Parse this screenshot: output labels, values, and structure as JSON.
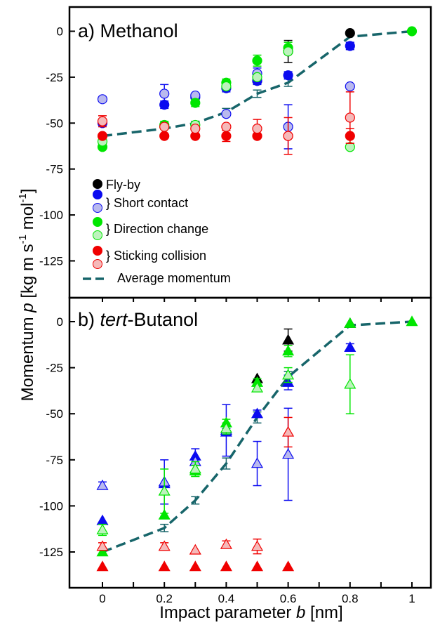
{
  "figure": {
    "ylabel_main": "Momentum ",
    "ylabel_var": "p",
    "ylabel_units": " [kg m s",
    "ylabel_exp1": "-1",
    "ylabel_mid": " mol",
    "ylabel_exp2": "-1",
    "ylabel_close": "]",
    "xlabel_main": "Impact parameter ",
    "xlabel_var": "b",
    "xlabel_units": " [nm]",
    "x_ticks": [
      "0",
      "0.2",
      "0.4",
      "0.6",
      "0.8",
      "1"
    ],
    "top_y_ticks": [
      "0",
      "-25",
      "-50",
      "-75",
      "-100",
      "-125"
    ],
    "bottom_y_ticks": [
      "0",
      "-25",
      "-50",
      "-75",
      "-100",
      "-125"
    ]
  },
  "legend": [
    {
      "label": "Fly-by",
      "marker": "filled-circle",
      "color": "#000000"
    },
    {
      "label": "} Short contact",
      "marker": "filled+open-circle",
      "color": "#0b0bf0"
    },
    {
      "label": "} Direction change",
      "marker": "filled+open-circle",
      "color": "#00e600"
    },
    {
      "label": "} Sticking collision",
      "marker": "filled+open-circle",
      "color": "#f00000"
    },
    {
      "label": "Average momentum",
      "marker": "dashed-line",
      "color": "#17656a"
    }
  ],
  "colors": {
    "flyby": "#000000",
    "short": "#0b0bf0",
    "short_open_fill": "#b9b9ee",
    "direction": "#00e600",
    "direction_open_fill": "#bdf2bd",
    "sticking": "#f00000",
    "sticking_open_fill": "#f5b9b9",
    "average": "#17656a"
  },
  "chart_data": [
    {
      "type": "scatter",
      "title": "a) Methanol",
      "xlabel": "Impact parameter b [nm]",
      "ylabel": "Momentum p [kg m s-1 mol-1]",
      "xlim": [
        -0.1,
        1.05
      ],
      "ylim": [
        -135,
        6
      ],
      "marker": "circle",
      "series": [
        {
          "name": "Fly-by",
          "style": "filled",
          "color": "#000000",
          "points": [
            [
              0.5,
              -27,
              0
            ],
            [
              0.6,
              -11,
              6
            ],
            [
              0.8,
              -1,
              0
            ]
          ]
        },
        {
          "name": "Short contact",
          "style": "filled",
          "color": "#0b0bf0",
          "points": [
            [
              0,
              -50,
              0
            ],
            [
              0.2,
              -40,
              2
            ],
            [
              0.3,
              -36,
              0
            ],
            [
              0.4,
              -31,
              2
            ],
            [
              0.5,
              -27,
              2
            ],
            [
              0.6,
              -24,
              2
            ],
            [
              0.8,
              -8,
              2
            ]
          ]
        },
        {
          "name": "Short contact",
          "style": "open",
          "color": "#0b0bf0",
          "points": [
            [
              0,
              -37,
              0
            ],
            [
              0.2,
              -34,
              5
            ],
            [
              0.3,
              -35,
              0
            ],
            [
              0.4,
              -45,
              0
            ],
            [
              0.5,
              -23,
              3
            ],
            [
              0.6,
              -52,
              12
            ],
            [
              0.8,
              -30,
              0
            ]
          ]
        },
        {
          "name": "Direction change",
          "style": "filled",
          "color": "#00e600",
          "points": [
            [
              0,
              -63,
              0
            ],
            [
              0.2,
              -51,
              2
            ],
            [
              0.3,
              -39,
              2
            ],
            [
              0.4,
              -28,
              2
            ],
            [
              0.5,
              -16,
              3
            ],
            [
              0.6,
              -9,
              3
            ],
            [
              1.0,
              0,
              0
            ]
          ]
        },
        {
          "name": "Direction change",
          "style": "open",
          "color": "#00e600",
          "points": [
            [
              0,
              -60,
              0
            ],
            [
              0.2,
              -52,
              0
            ],
            [
              0.3,
              -51,
              0
            ],
            [
              0.4,
              -30,
              0
            ],
            [
              0.5,
              -25,
              0
            ],
            [
              0.6,
              -11,
              0
            ],
            [
              0.8,
              -63,
              0
            ]
          ]
        },
        {
          "name": "Sticking collision",
          "style": "filled",
          "color": "#f00000",
          "points": [
            [
              0,
              -57,
              0
            ],
            [
              0.2,
              -57,
              0
            ],
            [
              0.3,
              -57,
              0
            ],
            [
              0.4,
              -57,
              3
            ],
            [
              0.5,
              -57,
              0
            ],
            [
              0.6,
              -57,
              0
            ],
            [
              0.8,
              -57,
              4
            ]
          ]
        },
        {
          "name": "Sticking collision",
          "style": "open",
          "color": "#f00000",
          "points": [
            [
              0,
              -49,
              3
            ],
            [
              0.2,
              -52,
              0
            ],
            [
              0.3,
              -53,
              0
            ],
            [
              0.4,
              -52,
              0
            ],
            [
              0.5,
              -53,
              5
            ],
            [
              0.6,
              -57,
              10
            ],
            [
              0.8,
              -47,
              14
            ]
          ]
        }
      ],
      "average": {
        "name": "Average momentum",
        "color": "#17656a",
        "points": [
          [
            0,
            -57,
            0
          ],
          [
            0.2,
            -53,
            0
          ],
          [
            0.3,
            -50,
            1
          ],
          [
            0.4,
            -44,
            2
          ],
          [
            0.5,
            -34,
            2
          ],
          [
            0.6,
            -28,
            2
          ],
          [
            0.8,
            -3,
            0
          ],
          [
            1.0,
            0,
            0
          ]
        ]
      }
    },
    {
      "type": "scatter",
      "title": "b) tert-Butanol",
      "xlabel": "Impact parameter b [nm]",
      "ylabel": "Momentum p [kg m s-1 mol-1]",
      "xlim": [
        -0.1,
        1.05
      ],
      "ylim": [
        -140,
        6
      ],
      "marker": "triangle",
      "series": [
        {
          "name": "Fly-by",
          "style": "filled",
          "color": "#000000",
          "points": [
            [
              0.5,
              -31,
              0
            ],
            [
              0.6,
              -10,
              6
            ],
            [
              0.8,
              -1,
              0
            ]
          ]
        },
        {
          "name": "Short contact",
          "style": "filled",
          "color": "#0b0bf0",
          "points": [
            [
              0,
              -108,
              0
            ],
            [
              0.2,
              -88,
              0
            ],
            [
              0.3,
              -73,
              4
            ],
            [
              0.4,
              -60,
              2
            ],
            [
              0.5,
              -50,
              2
            ],
            [
              0.6,
              -33,
              4
            ],
            [
              0.8,
              -14,
              2
            ]
          ]
        },
        {
          "name": "Short contact",
          "style": "open",
          "color": "#0b0bf0",
          "points": [
            [
              0,
              -89,
              2
            ],
            [
              0.2,
              -87,
              12
            ],
            [
              0.3,
              -76,
              0
            ],
            [
              0.4,
              -59,
              14
            ],
            [
              0.5,
              -77,
              12
            ],
            [
              0.6,
              -72,
              25
            ]
          ]
        },
        {
          "name": "Direction change",
          "style": "filled",
          "color": "#00e600",
          "points": [
            [
              0,
              -125,
              0
            ],
            [
              0.2,
              -105,
              0
            ],
            [
              0.3,
              -81,
              3
            ],
            [
              0.4,
              -55,
              2
            ],
            [
              0.5,
              -33,
              2
            ],
            [
              0.6,
              -16,
              3
            ],
            [
              0.8,
              -1,
              0
            ],
            [
              1.0,
              0,
              0
            ]
          ]
        },
        {
          "name": "Direction change",
          "style": "open",
          "color": "#00e600",
          "points": [
            [
              0,
              -113,
              3
            ],
            [
              0.2,
              -92,
              12
            ],
            [
              0.3,
              -80,
              4
            ],
            [
              0.4,
              -58,
              3
            ],
            [
              0.5,
              -36,
              2
            ],
            [
              0.6,
              -29,
              4
            ],
            [
              0.8,
              -34,
              16
            ]
          ]
        },
        {
          "name": "Sticking collision",
          "style": "filled",
          "color": "#f00000",
          "points": [
            [
              0,
              -133,
              0
            ],
            [
              0.2,
              -133,
              0
            ],
            [
              0.3,
              -133,
              0
            ],
            [
              0.4,
              -133,
              0
            ],
            [
              0.5,
              -133,
              0
            ],
            [
              0.6,
              -133,
              0
            ]
          ]
        },
        {
          "name": "Sticking collision",
          "style": "open",
          "color": "#f00000",
          "points": [
            [
              0,
              -122,
              2
            ],
            [
              0.2,
              -122,
              2
            ],
            [
              0.3,
              -124,
              0
            ],
            [
              0.4,
              -121,
              2
            ],
            [
              0.5,
              -122,
              4
            ],
            [
              0.6,
              -60,
              8
            ]
          ]
        }
      ],
      "average": {
        "name": "Average momentum",
        "color": "#17656a",
        "points": [
          [
            0,
            -125,
            2
          ],
          [
            0.2,
            -112,
            2
          ],
          [
            0.3,
            -97,
            2
          ],
          [
            0.4,
            -77,
            3
          ],
          [
            0.5,
            -52,
            3
          ],
          [
            0.6,
            -30,
            3
          ],
          [
            0.8,
            -2,
            0
          ],
          [
            1.0,
            0,
            0
          ]
        ]
      }
    }
  ]
}
